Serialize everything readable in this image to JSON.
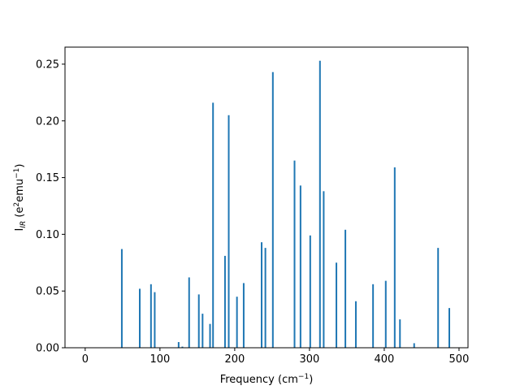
{
  "chart_data": {
    "type": "bar",
    "title": "",
    "xlabel": "Frequency (cm",
    "xlabel_sup": "−1",
    "xlabel_tail": ")",
    "ylabel_main": "I",
    "ylabel_sub": "IR",
    "ylabel_open": " (e",
    "ylabel_sup1": "2",
    "ylabel_mid": "emu",
    "ylabel_sup2": "−1",
    "ylabel_close": ")",
    "xlim": [
      -27,
      512
    ],
    "ylim": [
      0.0,
      0.265
    ],
    "xticks": [
      0,
      100,
      200,
      300,
      400,
      500
    ],
    "xtick_labels": [
      "0",
      "100",
      "200",
      "300",
      "400",
      "500"
    ],
    "yticks": [
      0.0,
      0.05,
      0.1,
      0.15,
      0.2,
      0.25
    ],
    "ytick_labels": [
      "0.00",
      "0.05",
      "0.10",
      "0.15",
      "0.20",
      "0.25"
    ],
    "grid": false,
    "bar_color": "#1f77b4",
    "x": [
      49,
      73,
      88,
      93,
      125,
      130,
      139,
      152,
      157,
      167,
      171,
      187,
      192,
      203,
      212,
      236,
      241,
      251,
      280,
      288,
      301,
      314,
      319,
      336,
      348,
      362,
      385,
      402,
      414,
      421,
      440,
      472,
      487
    ],
    "values": [
      0.087,
      0.052,
      0.056,
      0.049,
      0.005,
      0.001,
      0.062,
      0.047,
      0.03,
      0.021,
      0.216,
      0.081,
      0.205,
      0.045,
      0.057,
      0.093,
      0.088,
      0.243,
      0.165,
      0.143,
      0.099,
      0.253,
      0.138,
      0.075,
      0.104,
      0.041,
      0.056,
      0.059,
      0.159,
      0.025,
      0.004,
      0.088,
      0.035
    ]
  }
}
